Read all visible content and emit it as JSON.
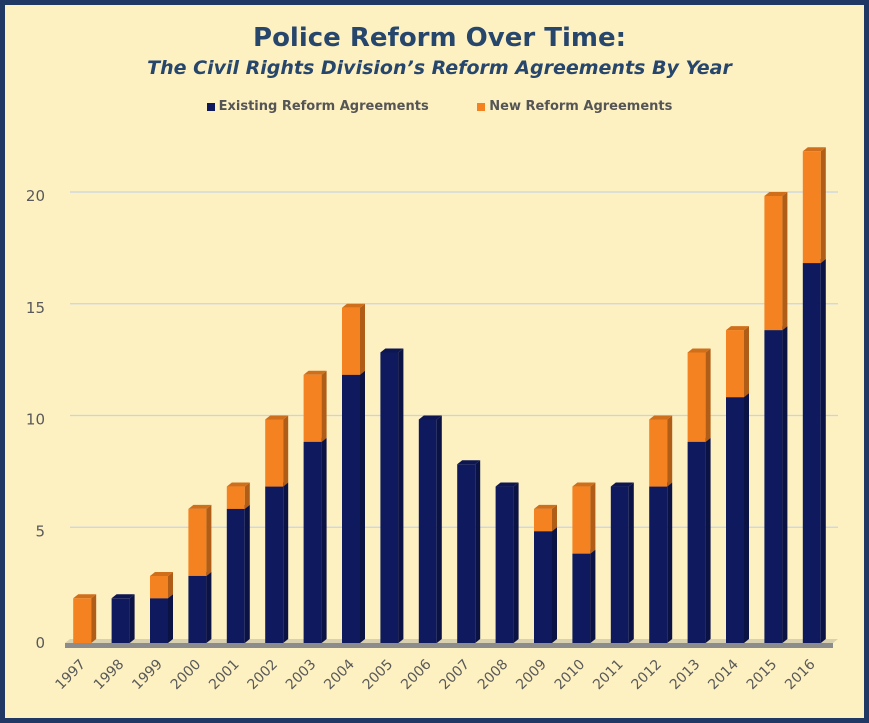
{
  "chart_data": {
    "type": "bar",
    "stacked": true,
    "title": "Police Reform Over Time:",
    "subtitle": "The Civil Rights Division’s Reform Agreements By Year",
    "categories": [
      "1997",
      "1998",
      "1999",
      "2000",
      "2001",
      "2002",
      "2003",
      "2004",
      "2005",
      "2006",
      "2007",
      "2008",
      "2009",
      "2010",
      "2011",
      "2012",
      "2013",
      "2014",
      "2015",
      "2016"
    ],
    "series": [
      {
        "name": "Existing Reform Agreements",
        "color": "#0f1a5e",
        "values": [
          0,
          2,
          2,
          3,
          6,
          7,
          9,
          12,
          13,
          10,
          8,
          7,
          5,
          4,
          7,
          7,
          9,
          11,
          14,
          17
        ]
      },
      {
        "name": "New Reform Agreements",
        "color": "#f58220",
        "values": [
          2,
          0,
          1,
          3,
          1,
          3,
          3,
          3,
          0,
          0,
          0,
          0,
          1,
          3,
          0,
          3,
          4,
          3,
          6,
          5
        ]
      }
    ],
    "ylim": [
      0,
      22
    ],
    "yticks": [
      0,
      5,
      10,
      15,
      20
    ],
    "grid": true,
    "legend_position": "top",
    "background": "#fdf1c2",
    "border_color": "#1f3864"
  }
}
